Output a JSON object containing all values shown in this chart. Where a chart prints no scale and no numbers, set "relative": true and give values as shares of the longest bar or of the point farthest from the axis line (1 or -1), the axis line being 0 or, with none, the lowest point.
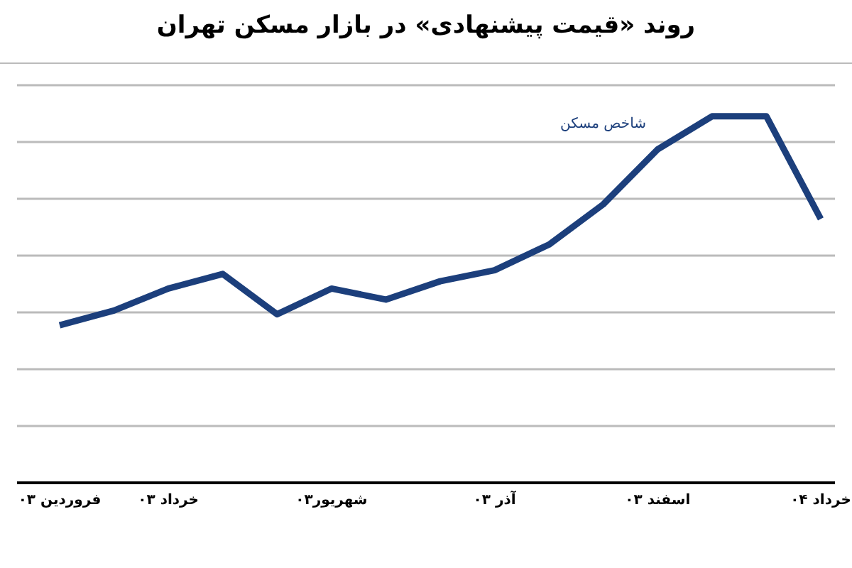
{
  "chart_data": {
    "type": "line",
    "title": "روند «قیمت پیشنهادی» در بازار مسکن تهران",
    "relative": true,
    "grid": "y",
    "marker": "none",
    "line_style": "solid",
    "categories": [
      "فروردین ۰۳",
      null,
      "خرداد ۰۳",
      null,
      null,
      "شهریور۰۳",
      null,
      null,
      "آذر ۰۳",
      null,
      null,
      "اسفند ۰۳",
      null,
      null,
      "خرداد ۰۴"
    ],
    "series": [
      {
        "name": "شاخص مسکن",
        "color": "#1c3f7c",
        "values": [
          0.43,
          0.47,
          0.53,
          0.57,
          0.46,
          0.53,
          0.5,
          0.55,
          0.58,
          0.65,
          0.76,
          0.91,
          1.0,
          1.0,
          0.72
        ]
      }
    ]
  }
}
